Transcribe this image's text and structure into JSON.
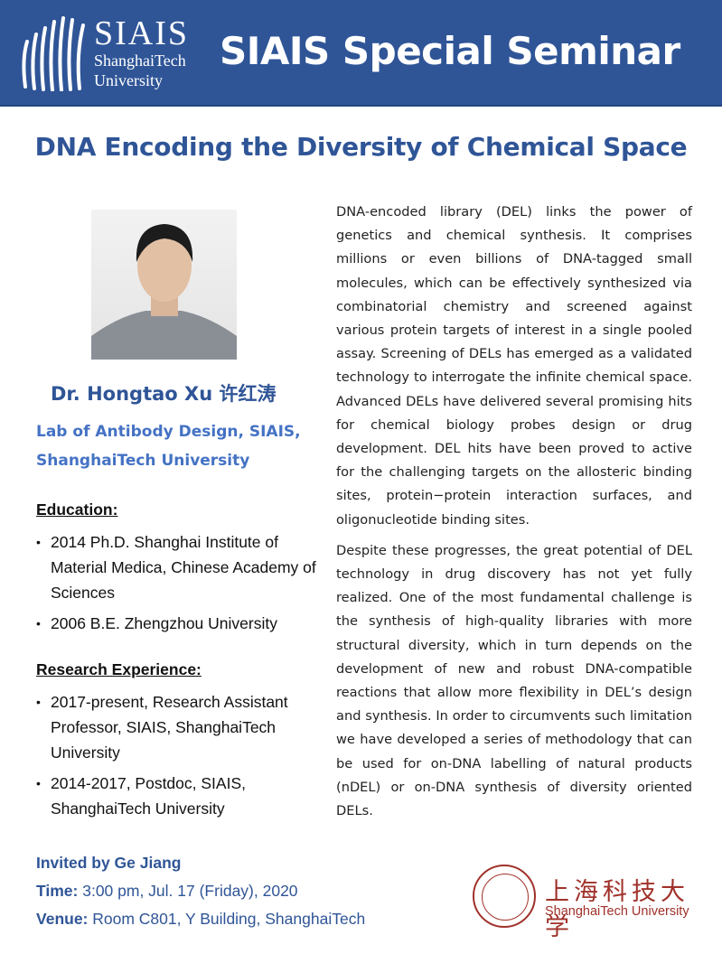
{
  "header": {
    "logo_big": "SIAIS",
    "logo_line1": "ShanghaiTech",
    "logo_line2": "University",
    "title": "SIAIS Special Seminar"
  },
  "title": "DNA Encoding the Diversity of Chemical Space",
  "speaker": {
    "name": "Dr. Hongtao Xu 许红涛",
    "affiliation_line1": "Lab of Antibody Design,  SIAIS,",
    "affiliation_line2": "ShanghaiTech University"
  },
  "education": {
    "heading": "Education:",
    "items": [
      "2014 Ph.D. Shanghai Institute of Material Medica, Chinese Academy of Sciences",
      "2006 B.E. Zhengzhou University"
    ]
  },
  "research": {
    "heading": "Research Experience:",
    "items": [
      "2017-present, Research Assistant Professor, SIAIS, ShanghaiTech University",
      "2014-2017, Postdoc, SIAIS, ShanghaiTech University"
    ]
  },
  "abstract": [
    "DNA-encoded library (DEL) links the power of genetics and chemical synthesis. It comprises millions or even billions of DNA-tagged small molecules, which can be effectively synthesized via combinatorial chemistry and screened against various protein targets of interest in a single pooled assay. Screening of DELs has emerged as a validated technology to interrogate the infinite chemical space. Advanced DELs have delivered several promising hits for chemical biology probes design or drug development. DEL hits have been proved to active for the challenging targets on the allosteric binding sites, protein−protein interaction surfaces, and oligonucleotide binding sites.",
    "Despite these progresses, the great potential of DEL technology in drug discovery has not yet fully realized. One of the most fundamental challenge is the synthesis of high-quality libraries with more structural diversity, which in turn depends on the development of new and robust DNA-compatible reactions that allow more flexibility in DEL’s design and synthesis. In order to circumvents such limitation we have developed a series of methodology that can be used for on-DNA labelling of natural products (nDEL) or on-DNA synthesis of diversity oriented DELs."
  ],
  "event": {
    "invited": "Invited by Ge Jiang",
    "time_label": "Time:",
    "time": " 3:00 pm, Jul. 17 (Friday), 2020",
    "venue_label": "Venue:",
    "venue": " Room C801, Y Building, ShanghaiTech"
  },
  "university_logo": {
    "cn": "上海科技大学",
    "en": "ShanghaiTech University"
  },
  "colors": {
    "header": "#2f5597",
    "title": "#2f5597",
    "affiliation": "#4472c4",
    "university": "#a0312a"
  }
}
